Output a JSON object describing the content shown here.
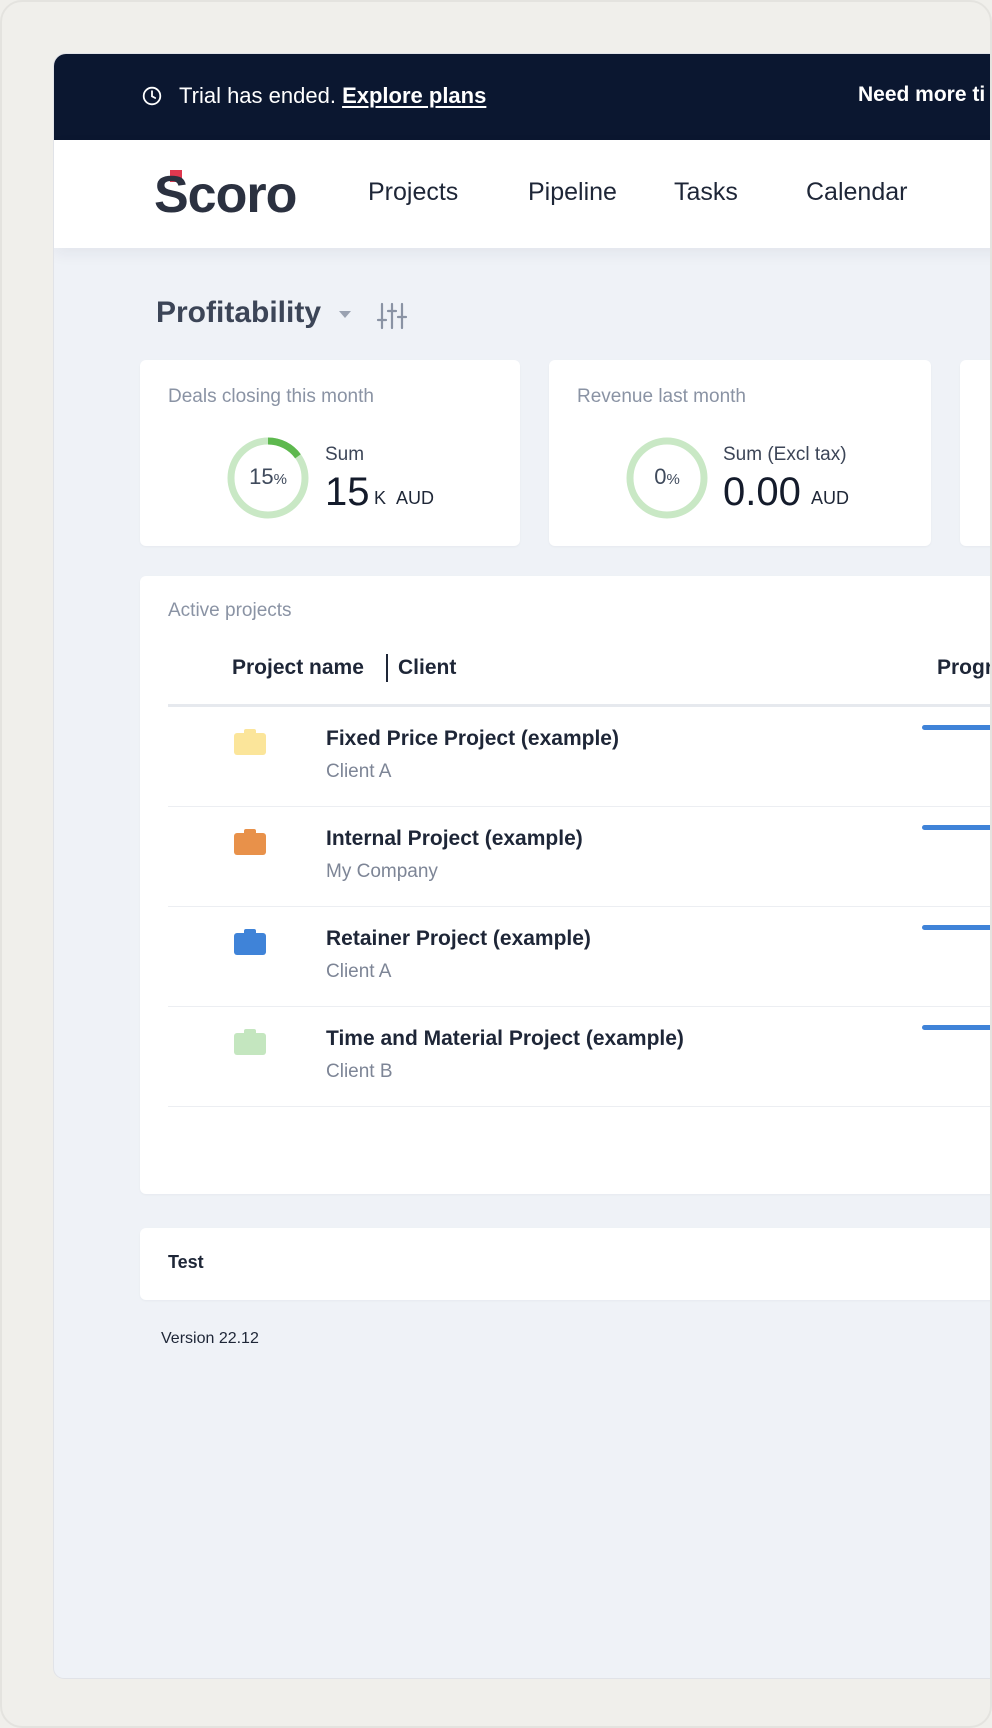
{
  "banner": {
    "icon": "clock-icon",
    "message": "Trial has ended.",
    "link_label": "Explore plans",
    "right_text": "Need more ti"
  },
  "nav": {
    "logo_text": "Scoro",
    "items": [
      {
        "label": "Projects"
      },
      {
        "label": "Pipeline"
      },
      {
        "label": "Tasks"
      },
      {
        "label": "Calendar"
      }
    ]
  },
  "dashboard": {
    "title": "Profitability",
    "caret_icon": "caret-down-icon",
    "filter_icon": "sliders-icon"
  },
  "kpis": [
    {
      "title": "Deals closing this month",
      "percent_value": "15",
      "percent_sign": "%",
      "percent_fraction": 0.15,
      "caption": "Sum",
      "value": "15",
      "suffix": "K",
      "currency": "AUD"
    },
    {
      "title": "Revenue last month",
      "percent_value": "0",
      "percent_sign": "%",
      "percent_fraction": 0,
      "caption": "Sum (Excl tax)",
      "value": "0.00",
      "suffix": "",
      "currency": "AUD"
    }
  ],
  "projects": {
    "section_title": "Active projects",
    "col_name": "Project name",
    "col_client": "Client",
    "col_progress": "Progr",
    "rows": [
      {
        "name": "Fixed Price Project (example)",
        "client": "Client A",
        "color": "#fbe59a",
        "progress": 1.0,
        "overrun": 0
      },
      {
        "name": "Internal Project (example)",
        "client": "My Company",
        "color": "#e8914a",
        "progress": 1.0,
        "overrun": 0
      },
      {
        "name": "Retainer Project (example)",
        "client": "Client A",
        "color": "#3f83d8",
        "progress": 1.0,
        "overrun": 0
      },
      {
        "name": "Time and Material Project (example)",
        "client": "Client B",
        "color": "#c4e6bf",
        "progress": 0.75,
        "overrun": 0.25
      }
    ]
  },
  "test_card": {
    "label": "Test"
  },
  "footer": {
    "version": "Version 22.12"
  },
  "colors": {
    "banner_bg": "#0b1730",
    "ring_track": "#c9e8c5",
    "ring_fill": "#5db84e",
    "progress_blue": "#3f83d8",
    "progress_yellow": "#f4c93d"
  }
}
